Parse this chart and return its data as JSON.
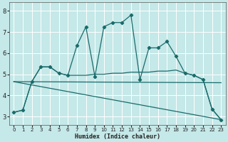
{
  "xlabel": "Humidex (Indice chaleur)",
  "background_color": "#c5e8e8",
  "grid_color": "#ffffff",
  "line_color": "#1a6b6b",
  "xlim": [
    -0.5,
    23.5
  ],
  "ylim": [
    2.6,
    8.4
  ],
  "yticks": [
    3,
    4,
    5,
    6,
    7,
    8
  ],
  "xticks": [
    0,
    1,
    2,
    3,
    4,
    5,
    6,
    7,
    8,
    9,
    10,
    11,
    12,
    13,
    14,
    15,
    16,
    17,
    18,
    19,
    20,
    21,
    22,
    23
  ],
  "series1_x": [
    0,
    1,
    2,
    3,
    4,
    5,
    6,
    7,
    8,
    9,
    10,
    11,
    12,
    13,
    14,
    15,
    16,
    17,
    18,
    19,
    20,
    21,
    22,
    23
  ],
  "series1_y": [
    3.2,
    3.3,
    4.65,
    5.35,
    5.35,
    5.05,
    4.95,
    6.35,
    7.25,
    4.9,
    7.25,
    7.45,
    7.45,
    7.8,
    4.75,
    6.25,
    6.25,
    6.55,
    5.85,
    5.05,
    4.95,
    4.75,
    3.35,
    2.85
  ],
  "series2_x": [
    0,
    1,
    2,
    3,
    4,
    5,
    6,
    7,
    8,
    9,
    10,
    11,
    12,
    13,
    14,
    15,
    16,
    17,
    18,
    19,
    20,
    21,
    22,
    23
  ],
  "series2_y": [
    3.2,
    3.3,
    4.65,
    5.35,
    5.35,
    5.05,
    4.95,
    4.95,
    4.95,
    5.0,
    5.0,
    5.05,
    5.05,
    5.1,
    5.1,
    5.1,
    5.15,
    5.15,
    5.2,
    5.05,
    4.95,
    4.75,
    3.35,
    2.85
  ],
  "series3_x": [
    0,
    23
  ],
  "series3_y": [
    4.65,
    4.6
  ],
  "series4_x": [
    0,
    23
  ],
  "series4_y": [
    4.65,
    2.85
  ]
}
